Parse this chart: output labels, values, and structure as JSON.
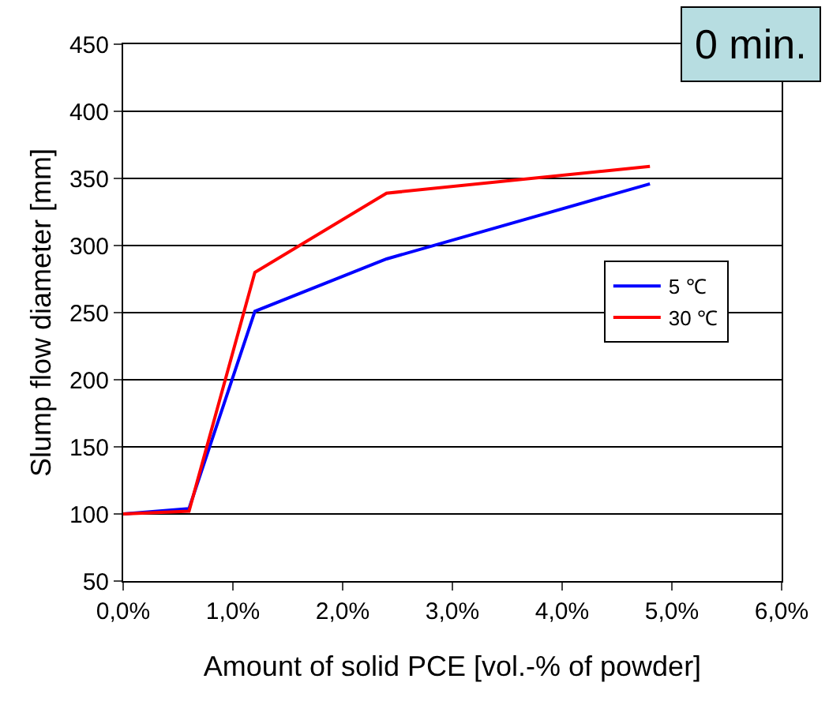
{
  "chart_data": {
    "type": "line",
    "xlabel": "Amount of solid PCE [vol.-% of powder]",
    "ylabel": "Slump flow diameter [mm]",
    "annotations": [
      "0 min."
    ],
    "x": [
      0,
      0.6,
      1.2,
      2.4,
      4.8
    ],
    "series": [
      {
        "name": "5 ℃",
        "color": "#0000ff",
        "values": [
          100,
          104,
          251,
          290,
          346
        ]
      },
      {
        "name": "30 ℃",
        "color": "#ff0000",
        "values": [
          100,
          102,
          280,
          339,
          359
        ]
      }
    ],
    "xlim": [
      0,
      6
    ],
    "xticks": [
      {
        "value": 0,
        "label": "0,0%"
      },
      {
        "value": 1,
        "label": "1,0%"
      },
      {
        "value": 2,
        "label": "2,0%"
      },
      {
        "value": 3,
        "label": "3,0%"
      },
      {
        "value": 4,
        "label": "4,0%"
      },
      {
        "value": 5,
        "label": "5,0%"
      },
      {
        "value": 6,
        "label": "6,0%"
      }
    ],
    "ylim": [
      50,
      450
    ],
    "yticks": [
      50,
      100,
      150,
      200,
      250,
      300,
      350,
      400,
      450
    ],
    "grid": "y",
    "legend": "right",
    "marker": "none",
    "line_style": "solid"
  }
}
